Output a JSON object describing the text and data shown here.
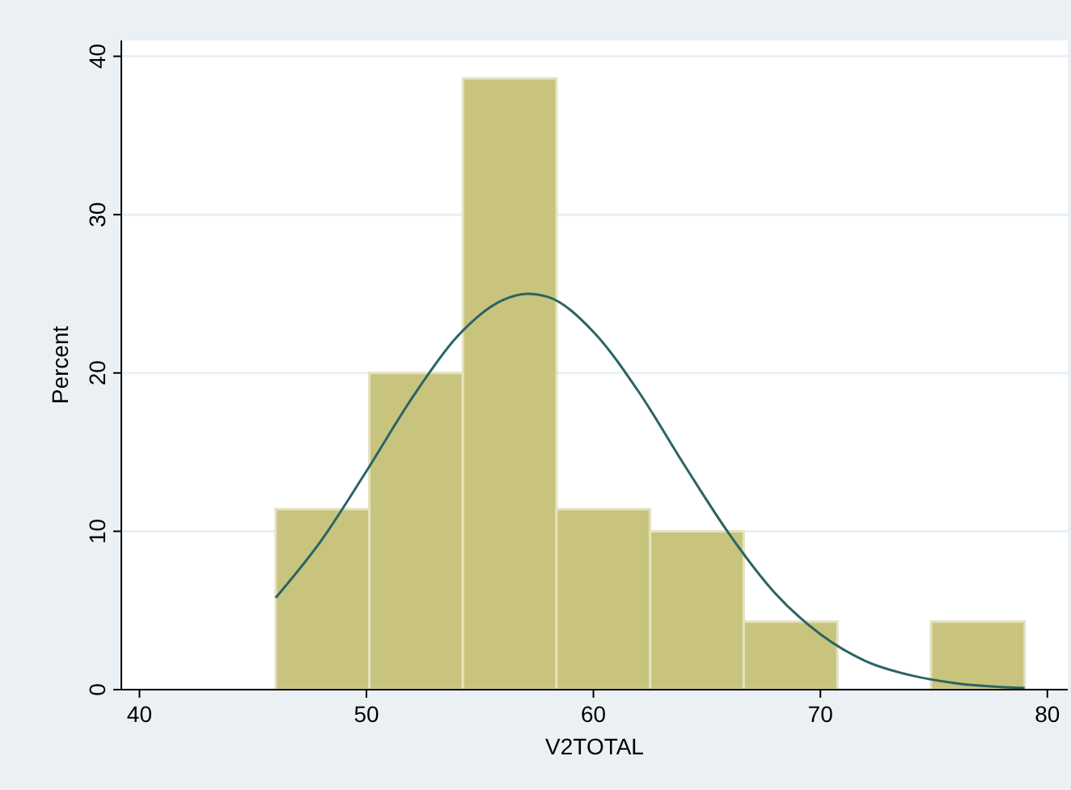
{
  "chart_data": {
    "type": "histogram",
    "xlabel": "V2TOTAL",
    "ylabel": "Percent",
    "bins": [
      46,
      50.125,
      54.25,
      58.375,
      62.5,
      66.625,
      70.75,
      74.875,
      79
    ],
    "values": [
      11.4,
      20,
      38.6,
      11.4,
      10,
      4.3,
      0,
      4.3
    ],
    "color": "#c8c47e",
    "series": [
      {
        "type": "line",
        "color": "#2a6464",
        "x": [
          46,
          48,
          50,
          52,
          54,
          56,
          57.1,
          58,
          60,
          62,
          64,
          66,
          68,
          70,
          72,
          74,
          76,
          79
        ],
        "values": [
          5.8,
          9.4,
          13.8,
          18.4,
          22.3,
          24.6,
          25,
          24.8,
          22.6,
          18.8,
          14.2,
          9.8,
          6.1,
          3.5,
          1.8,
          0.9,
          0.4,
          0.1
        ]
      }
    ],
    "xlim": [
      39.2,
      80.9
    ],
    "ylim": [
      0,
      41
    ],
    "xticks": [
      40,
      50,
      60,
      70,
      80
    ],
    "yticks": [
      0,
      10,
      20,
      30,
      40
    ],
    "grid": "y"
  }
}
